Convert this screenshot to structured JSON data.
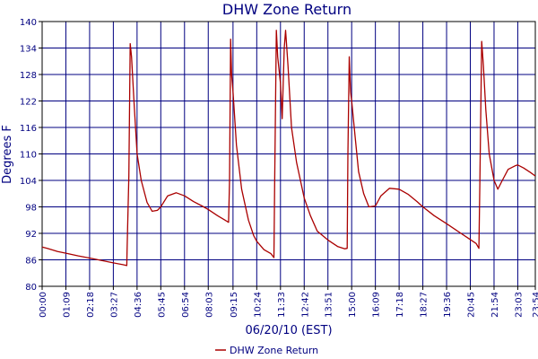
{
  "chart_data": {
    "type": "line",
    "title": "DHW Zone Return",
    "xlabel": "06/20/10 (EST)",
    "ylabel": "Degrees F",
    "xlim": [
      "00:00",
      "23:54"
    ],
    "ylim": [
      80,
      140
    ],
    "grid": true,
    "legend_position": "bottom-center",
    "x_tick_labels": [
      "00:00",
      "01:09",
      "02:18",
      "03:27",
      "04:36",
      "05:45",
      "06:54",
      "08:03",
      "09:15",
      "10:24",
      "11:33",
      "12:42",
      "13:51",
      "15:00",
      "16:09",
      "17:18",
      "18:27",
      "19:36",
      "20:45",
      "21:54",
      "23:03",
      "23:54"
    ],
    "y_tick_labels": [
      "80",
      "86",
      "92",
      "98",
      "104",
      "110",
      "116",
      "122",
      "128",
      "134",
      "140"
    ],
    "series": [
      {
        "name": "DHW Zone Return",
        "color": "#aa0000",
        "points": [
          [
            "00:00",
            88.9
          ],
          [
            "00:15",
            88.6
          ],
          [
            "00:45",
            87.9
          ],
          [
            "01:09",
            87.5
          ],
          [
            "01:45",
            86.9
          ],
          [
            "02:18",
            86.4
          ],
          [
            "02:50",
            85.9
          ],
          [
            "03:27",
            85.3
          ],
          [
            "03:55",
            84.9
          ],
          [
            "04:06",
            84.7
          ],
          [
            "04:07",
            88.0
          ],
          [
            "04:12",
            105.0
          ],
          [
            "04:16",
            135.0
          ],
          [
            "04:20",
            132.0
          ],
          [
            "04:27",
            122.0
          ],
          [
            "04:36",
            110.0
          ],
          [
            "04:48",
            104.0
          ],
          [
            "05:05",
            99.0
          ],
          [
            "05:20",
            97.0
          ],
          [
            "05:35",
            97.2
          ],
          [
            "05:45",
            98.0
          ],
          [
            "06:05",
            100.5
          ],
          [
            "06:30",
            101.2
          ],
          [
            "06:54",
            100.5
          ],
          [
            "07:20",
            99.2
          ],
          [
            "07:45",
            98.2
          ],
          [
            "08:03",
            97.4
          ],
          [
            "08:30",
            96.0
          ],
          [
            "08:52",
            95.0
          ],
          [
            "09:02",
            94.5
          ],
          [
            "09:05",
            104.0
          ],
          [
            "09:08",
            136.0
          ],
          [
            "09:11",
            128.0
          ],
          [
            "09:15",
            124.0
          ],
          [
            "09:25",
            112.0
          ],
          [
            "09:40",
            102.0
          ],
          [
            "10:00",
            95.0
          ],
          [
            "10:15",
            91.5
          ],
          [
            "10:24",
            90.2
          ],
          [
            "10:45",
            88.3
          ],
          [
            "11:05",
            87.4
          ],
          [
            "11:14",
            86.5
          ],
          [
            "11:16",
            103.0
          ],
          [
            "11:21",
            138.0
          ],
          [
            "11:25",
            132.0
          ],
          [
            "11:33",
            126.0
          ],
          [
            "11:38",
            118.0
          ],
          [
            "11:44",
            134.0
          ],
          [
            "11:48",
            138.0
          ],
          [
            "11:55",
            130.0
          ],
          [
            "12:05",
            116.0
          ],
          [
            "12:20",
            108.0
          ],
          [
            "12:42",
            100.0
          ],
          [
            "13:00",
            96.0
          ],
          [
            "13:20",
            92.5
          ],
          [
            "13:51",
            90.5
          ],
          [
            "14:20",
            89.0
          ],
          [
            "14:40",
            88.5
          ],
          [
            "14:47",
            88.6
          ],
          [
            "14:49",
            110.0
          ],
          [
            "14:53",
            132.0
          ],
          [
            "14:57",
            124.0
          ],
          [
            "15:00",
            122.0
          ],
          [
            "15:10",
            114.0
          ],
          [
            "15:20",
            106.0
          ],
          [
            "15:35",
            101.0
          ],
          [
            "15:50",
            98.0
          ],
          [
            "16:09",
            98.2
          ],
          [
            "16:25",
            100.5
          ],
          [
            "16:50",
            102.2
          ],
          [
            "17:18",
            102.0
          ],
          [
            "17:45",
            100.8
          ],
          [
            "18:10",
            99.2
          ],
          [
            "18:27",
            98.0
          ],
          [
            "19:00",
            96.0
          ],
          [
            "19:36",
            94.2
          ],
          [
            "20:10",
            92.4
          ],
          [
            "20:45",
            90.6
          ],
          [
            "21:02",
            89.7
          ],
          [
            "21:10",
            88.6
          ],
          [
            "21:13",
            104.0
          ],
          [
            "21:18",
            135.5
          ],
          [
            "21:23",
            130.0
          ],
          [
            "21:30",
            120.0
          ],
          [
            "21:40",
            110.0
          ],
          [
            "21:54",
            104.0
          ],
          [
            "22:05",
            102.0
          ],
          [
            "22:18",
            104.0
          ],
          [
            "22:35",
            106.5
          ],
          [
            "22:55",
            107.3
          ],
          [
            "23:03",
            107.5
          ],
          [
            "23:20",
            106.8
          ],
          [
            "23:40",
            105.8
          ],
          [
            "23:54",
            105.0
          ]
        ]
      }
    ]
  }
}
